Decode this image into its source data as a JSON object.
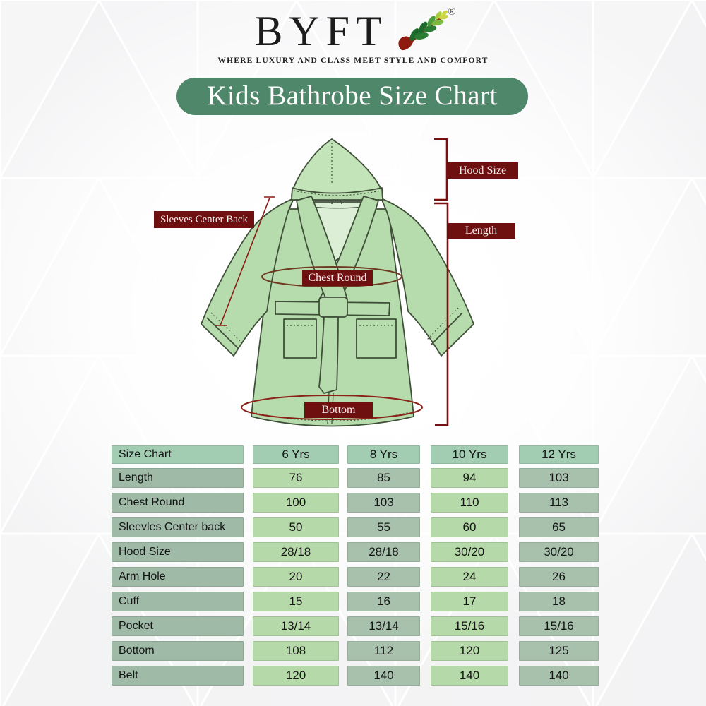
{
  "logo": {
    "text": "BYFT",
    "registered": "®",
    "tagline": "WHERE LUXURY AND CLASS MEET STYLE AND COMFORT"
  },
  "banner": {
    "title": "Kids Bathrobe Size Chart"
  },
  "diagram": {
    "labels": {
      "sleeves_center_back": "Sleeves Center Back",
      "hood_size": "Hood Size",
      "length": "Length",
      "chest_round": "Chest Round",
      "bottom": "Bottom"
    }
  },
  "chart_data": {
    "type": "table",
    "columns": [
      "Size Chart",
      "6 Yrs",
      "8 Yrs",
      "10 Yrs",
      "12 Yrs"
    ],
    "rows": [
      [
        "Length",
        "76",
        "85",
        "94",
        "103"
      ],
      [
        "Chest Round",
        "100",
        "103",
        "110",
        "113"
      ],
      [
        "Sleevles Center back",
        "50",
        "55",
        "60",
        "65"
      ],
      [
        "Hood Size",
        "28/18",
        "28/18",
        "30/20",
        "30/20"
      ],
      [
        "Arm Hole",
        "20",
        "22",
        "24",
        "26"
      ],
      [
        "Cuff",
        "15",
        "16",
        "17",
        "18"
      ],
      [
        "Pocket",
        "13/14",
        "13/14",
        "15/16",
        "15/16"
      ],
      [
        "Bottom",
        "108",
        "112",
        "120",
        "125"
      ],
      [
        "Belt",
        "120",
        "140",
        "140",
        "140"
      ]
    ]
  },
  "colors": {
    "banner_green": "#4e8769",
    "label_maroon": "#6e0f10",
    "measure_red": "#7a0f10",
    "robe_green": "#b6dcae",
    "table_header_mint": "#a2cdb3",
    "table_label_sage": "#9fbaa6",
    "table_value_light": "#b5d9a8",
    "table_value_sage": "#a7c1ad"
  }
}
